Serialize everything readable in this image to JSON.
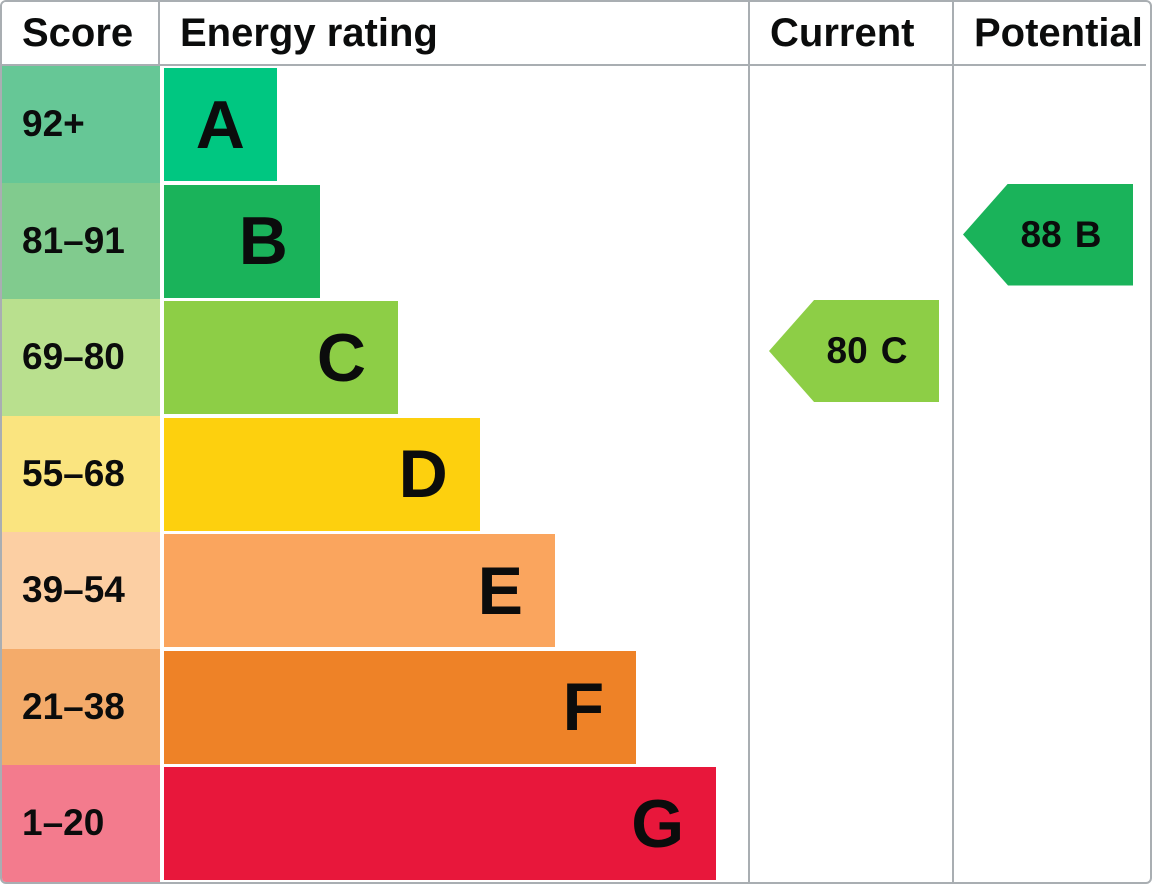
{
  "header": {
    "score": "Score",
    "energy_rating": "Energy rating",
    "current": "Current",
    "potential": "Potential"
  },
  "bands": [
    {
      "letter": "A",
      "score_range": "92+",
      "band_color": "#00c781",
      "score_tint_color": "#66c796",
      "bar_width_pct": 19.2
    },
    {
      "letter": "B",
      "score_range": "81–91",
      "band_color": "#1ab35a",
      "score_tint_color": "#81cb8e",
      "bar_width_pct": 26.5
    },
    {
      "letter": "C",
      "score_range": "69–80",
      "band_color": "#8dce46",
      "score_tint_color": "#b9e08e",
      "bar_width_pct": 39.8
    },
    {
      "letter": "D",
      "score_range": "55–68",
      "band_color": "#fdd00e",
      "score_tint_color": "#fae47f",
      "bar_width_pct": 53.7
    },
    {
      "letter": "E",
      "score_range": "39–54",
      "band_color": "#faa55e",
      "score_tint_color": "#fccfa3",
      "bar_width_pct": 66.5
    },
    {
      "letter": "F",
      "score_range": "21–38",
      "band_color": "#ee8227",
      "score_tint_color": "#f4ab6a",
      "bar_width_pct": 80.3
    },
    {
      "letter": "G",
      "score_range": "1–20",
      "band_color": "#e8173b",
      "score_tint_color": "#f37b8d",
      "bar_width_pct": 93.9
    }
  ],
  "current": {
    "value": "80",
    "letter": "C",
    "color": "#8dce46"
  },
  "potential": {
    "value": "88",
    "letter": "B",
    "color": "#1ab35a"
  },
  "colors": {
    "border_gray": "#a9aeb2",
    "text_black": "#0b0c0c",
    "background": "#ffffff"
  },
  "chart_data": {
    "type": "bar",
    "title": "EPC energy efficiency rating chart",
    "columns": [
      "Score",
      "Energy rating",
      "Current",
      "Potential"
    ],
    "categories": [
      "A",
      "B",
      "C",
      "D",
      "E",
      "F",
      "G"
    ],
    "score_ranges": [
      "92+",
      "81–91",
      "69–80",
      "55–68",
      "39–54",
      "21–38",
      "1–20"
    ],
    "bar_lengths_pct_of_rating_column": [
      19.2,
      26.5,
      39.8,
      53.7,
      66.5,
      80.3,
      93.9
    ],
    "band_colors": [
      "#00c781",
      "#1ab35a",
      "#8dce46",
      "#fdd00e",
      "#faa55e",
      "#ee8227",
      "#e8173b"
    ],
    "score_tint_colors": [
      "#66c796",
      "#81cb8e",
      "#b9e08e",
      "#fae47f",
      "#fccfa3",
      "#f4ab6a",
      "#f37b8d"
    ],
    "markers": {
      "current": {
        "score": 80,
        "band": "C",
        "column": "Current",
        "row": "C",
        "arrow_direction": "left"
      },
      "potential": {
        "score": 88,
        "band": "B",
        "column": "Potential",
        "row": "B",
        "arrow_direction": "left"
      }
    },
    "legend_position": "column headers",
    "grid": false
  }
}
